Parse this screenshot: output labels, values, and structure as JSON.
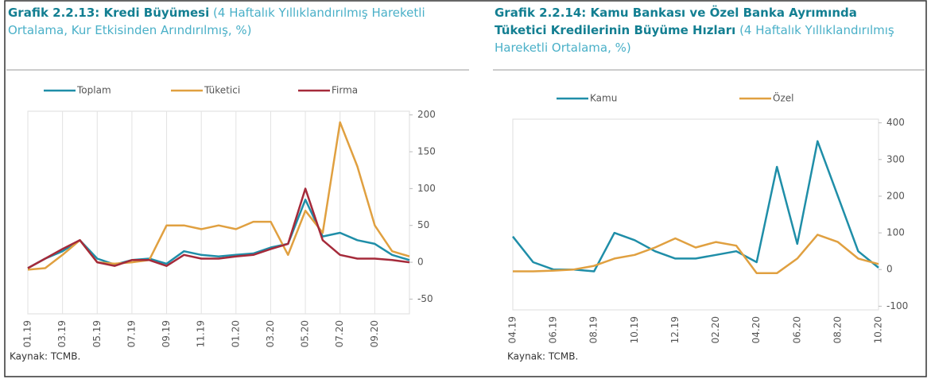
{
  "chart_data": [
    {
      "type": "line",
      "title": "Grafik 2.2.13: Kredi Büyümesi",
      "subtitle": "(4 Haftalık Yıllıklandırılmış Hareketli Ortalama, Kur Etkisinden Arındırılmış, %)",
      "source": "Kaynak: TCMB.",
      "categories": [
        "01.19",
        null,
        "03.19",
        null,
        "05.19",
        null,
        "07.19",
        null,
        "09.19",
        null,
        "11.19",
        null,
        "01.20",
        null,
        "03.20",
        null,
        "05.20",
        null,
        "07.20",
        null,
        "09.20",
        null,
        null
      ],
      "series": [
        {
          "name": "Toplam",
          "color": "#1f8ea8",
          "values": [
            -8,
            5,
            15,
            30,
            5,
            -3,
            3,
            5,
            -2,
            15,
            10,
            8,
            10,
            12,
            20,
            25,
            85,
            35,
            40,
            30,
            25,
            10,
            3
          ]
        },
        {
          "name": "Tüketici",
          "color": "#e0a040",
          "values": [
            -10,
            -8,
            10,
            30,
            0,
            -2,
            0,
            3,
            50,
            50,
            45,
            50,
            45,
            55,
            55,
            10,
            70,
            40,
            190,
            130,
            50,
            15,
            8
          ]
        },
        {
          "name": "Firma",
          "color": "#a52a3a",
          "values": [
            -8,
            5,
            18,
            30,
            0,
            -5,
            3,
            3,
            -5,
            10,
            5,
            5,
            8,
            10,
            18,
            25,
            100,
            30,
            10,
            5,
            5,
            3,
            0
          ]
        }
      ],
      "ylim": [
        -70,
        205
      ],
      "yticks": [
        -50,
        0,
        50,
        100,
        150,
        200
      ],
      "grid": true
    },
    {
      "type": "line",
      "title": "Grafik 2.2.14: Kamu Bankası ve Özel Banka Ayrımında Tüketici Kredilerinin Büyüme Hızları",
      "subtitle": "(4 Haftalık Yıllıklandırılmış Hareketli Ortalama, %)",
      "source": "Kaynak: TCMB.",
      "categories": [
        "04.19",
        null,
        "06.19",
        null,
        "08.19",
        null,
        "10.19",
        null,
        "12.19",
        null,
        "02.20",
        null,
        "04.20",
        null,
        "06.20",
        null,
        "08.20",
        null,
        "10.20"
      ],
      "series": [
        {
          "name": "Kamu",
          "color": "#1f8ea8",
          "values": [
            90,
            20,
            0,
            0,
            -5,
            100,
            80,
            50,
            30,
            30,
            40,
            50,
            20,
            280,
            70,
            350,
            200,
            50,
            5
          ]
        },
        {
          "name": "Özel",
          "color": "#e0a040",
          "values": [
            -5,
            -5,
            -3,
            0,
            10,
            30,
            40,
            60,
            85,
            60,
            75,
            65,
            -10,
            -10,
            30,
            95,
            75,
            30,
            15
          ]
        }
      ],
      "ylim": [
        -110,
        410
      ],
      "yticks": [
        -100,
        0,
        100,
        200,
        300,
        400
      ],
      "grid": false
    }
  ]
}
